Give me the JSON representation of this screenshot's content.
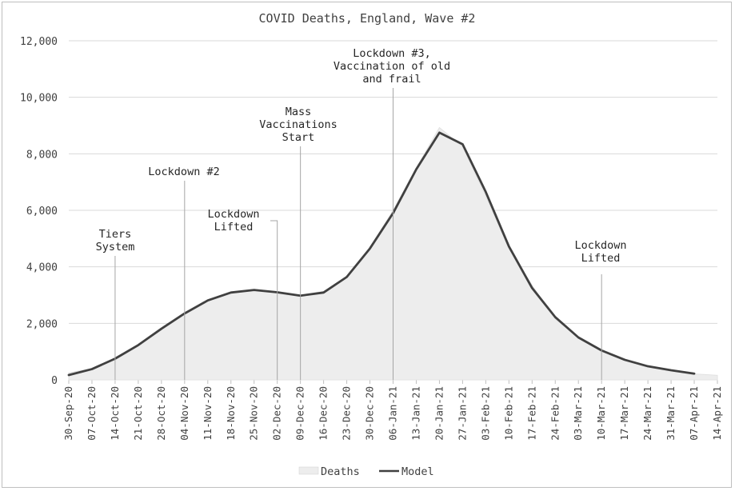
{
  "chart_data": {
    "type": "area",
    "title": "COVID Deaths, England, Wave #2",
    "xlabel": "",
    "ylabel": "",
    "ylim": [
      0,
      12000
    ],
    "yticks": [
      0,
      2000,
      4000,
      6000,
      8000,
      10000,
      12000
    ],
    "ytick_labels": [
      "0",
      "2,000",
      "4,000",
      "6,000",
      "8,000",
      "10,000",
      "12,000"
    ],
    "categories": [
      "30-Sep-20",
      "07-Oct-20",
      "14-Oct-20",
      "21-Oct-20",
      "28-Oct-20",
      "04-Nov-20",
      "11-Nov-20",
      "18-Nov-20",
      "25-Nov-20",
      "02-Dec-20",
      "09-Dec-20",
      "16-Dec-20",
      "23-Dec-20",
      "30-Dec-20",
      "06-Jan-21",
      "13-Jan-21",
      "20-Jan-21",
      "27-Jan-21",
      "03-Feb-21",
      "10-Feb-21",
      "17-Feb-21",
      "24-Feb-21",
      "03-Mar-21",
      "10-Mar-21",
      "17-Mar-21",
      "24-Mar-21",
      "31-Mar-21",
      "07-Apr-21",
      "14-Apr-21"
    ],
    "series": [
      {
        "name": "Deaths",
        "type": "area",
        "color": "#ededed",
        "values": [
          250,
          400,
          780,
          1250,
          1830,
          2380,
          2830,
          3100,
          3200,
          3120,
          3000,
          3130,
          3650,
          4680,
          6000,
          7500,
          8930,
          8250,
          6500,
          4650,
          3350,
          2150,
          1500,
          1030,
          720,
          480,
          330,
          210,
          160
        ]
      },
      {
        "name": "Model",
        "type": "line",
        "color": "#404040",
        "values": [
          170,
          380,
          750,
          1230,
          1810,
          2350,
          2810,
          3090,
          3180,
          3100,
          2980,
          3090,
          3640,
          4650,
          5900,
          7450,
          8750,
          8340,
          6650,
          4720,
          3250,
          2220,
          1500,
          1040,
          710,
          480,
          340,
          220,
          null
        ]
      }
    ],
    "annotations": [
      {
        "lines": [
          "Tiers",
          "System"
        ],
        "category": "14-Oct-20"
      },
      {
        "lines": [
          "Lockdown #2"
        ],
        "category": "04-Nov-20"
      },
      {
        "lines": [
          "Lockdown",
          "Lifted"
        ],
        "category": "02-Dec-20"
      },
      {
        "lines": [
          "Mass",
          "Vaccinations",
          "Start"
        ],
        "category": "09-Dec-20"
      },
      {
        "lines": [
          "Lockdown #3,",
          "Vaccination of old",
          "and frail"
        ],
        "category": "06-Jan-21"
      },
      {
        "lines": [
          "Lockdown",
          "Lifted"
        ],
        "category": "10-Mar-21"
      }
    ],
    "legend": {
      "position": "bottom",
      "entries": [
        "Deaths",
        "Model"
      ]
    },
    "grid": true
  }
}
